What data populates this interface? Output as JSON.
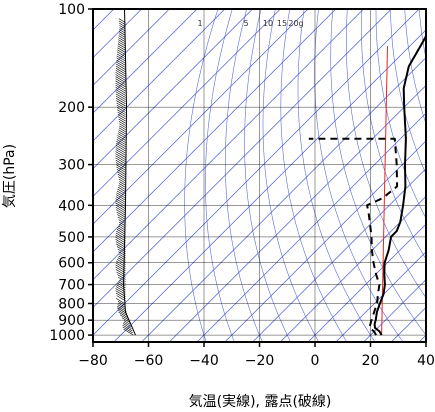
{
  "chart_data": {
    "type": "line",
    "xlabel": "気温(実線), 露点(破線)",
    "ylabel": "気圧(hPa)",
    "xlim": [
      -80,
      40
    ],
    "ylim": [
      1050,
      100
    ],
    "y_scale": "log",
    "x_ticks": [
      -80,
      -60,
      -40,
      -20,
      0,
      20,
      40
    ],
    "x_tick_labels": [
      "−80",
      "−60",
      "−40",
      "−20",
      "0",
      "20",
      "40"
    ],
    "y_ticks": [
      100,
      200,
      300,
      400,
      500,
      600,
      700,
      800,
      900,
      1000
    ],
    "y_tick_labels": [
      "100",
      "200",
      "300",
      "400",
      "500",
      "600",
      "700",
      "800",
      "900",
      "1000"
    ],
    "mixing_ratio_labels": [
      "1",
      "5",
      "10",
      "15",
      "20g"
    ],
    "mixing_ratio_values_g_per_kg": [
      1,
      5,
      10,
      15,
      20
    ],
    "colors": {
      "temperature": "#000000",
      "dewpoint": "#000000",
      "reference_line": "#e8281e",
      "isotherms": "#4a5bdc",
      "grid": "#000000"
    },
    "series": [
      {
        "style": "solid",
        "points": [
          {
            "p": 1000,
            "t": 24
          },
          {
            "p": 975,
            "t": 22
          },
          {
            "p": 950,
            "t": 19
          },
          {
            "p": 925,
            "t": 17.5
          },
          {
            "p": 900,
            "t": 16.5
          },
          {
            "p": 850,
            "t": 14
          },
          {
            "p": 800,
            "t": 12
          },
          {
            "p": 750,
            "t": 10
          },
          {
            "p": 700,
            "t": 7
          },
          {
            "p": 650,
            "t": 3
          },
          {
            "p": 600,
            "t": -1
          },
          {
            "p": 550,
            "t": -4
          },
          {
            "p": 500,
            "t": -8
          },
          {
            "p": 480,
            "t": -8
          },
          {
            "p": 450,
            "t": -10
          },
          {
            "p": 400,
            "t": -15
          },
          {
            "p": 350,
            "t": -21
          },
          {
            "p": 300,
            "t": -29
          },
          {
            "p": 250,
            "t": -38
          },
          {
            "p": 200,
            "t": -50
          },
          {
            "p": 175,
            "t": -57
          },
          {
            "p": 150,
            "t": -63
          },
          {
            "p": 125,
            "t": -67
          },
          {
            "p": 115,
            "t": -69
          },
          {
            "p": 100,
            "t": -73
          }
        ]
      },
      {
        "style": "dashed",
        "points": [
          {
            "p": 1000,
            "t": 22
          },
          {
            "p": 975,
            "t": 20
          },
          {
            "p": 950,
            "t": 17
          },
          {
            "p": 925,
            "t": 16
          },
          {
            "p": 900,
            "t": 15
          },
          {
            "p": 850,
            "t": 13
          },
          {
            "p": 800,
            "t": 11
          },
          {
            "p": 750,
            "t": 8
          },
          {
            "p": 700,
            "t": 5
          },
          {
            "p": 650,
            "t": 0
          },
          {
            "p": 600,
            "t": -5
          },
          {
            "p": 550,
            "t": -10
          },
          {
            "p": 500,
            "t": -15
          },
          {
            "p": 450,
            "t": -21
          },
          {
            "p": 420,
            "t": -25
          },
          {
            "p": 400,
            "t": -28
          },
          {
            "p": 380,
            "t": -25
          },
          {
            "p": 350,
            "t": -24
          },
          {
            "p": 300,
            "t": -32
          },
          {
            "p": 250,
            "t": -42
          },
          {
            "p": 250,
            "t": -73
          }
        ]
      }
    ],
    "reference_line": [
      {
        "p": 1000,
        "t": 24
      },
      {
        "p": 130,
        "t": -78
      }
    ]
  }
}
